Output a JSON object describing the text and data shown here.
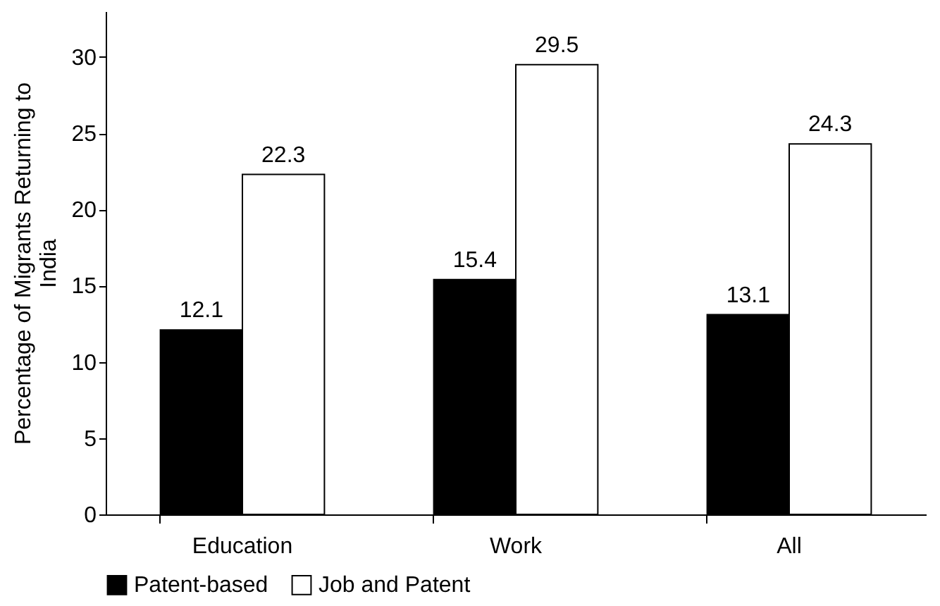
{
  "chart_data": {
    "type": "bar",
    "ylabel": "Percentage of Migrants Returning to India",
    "categories": [
      "Education",
      "Work",
      "All"
    ],
    "series": [
      {
        "name": "Patent-based",
        "color": "#000000",
        "values": [
          12.1,
          15.4,
          13.1
        ]
      },
      {
        "name": "Job and Patent",
        "color": "#ffffff",
        "values": [
          22.3,
          29.5,
          24.3
        ]
      }
    ],
    "ylim": [
      0,
      33
    ],
    "yticks": [
      0,
      5,
      10,
      15,
      20,
      25,
      30
    ],
    "data_labels": true,
    "legend": "bottom",
    "grid": false
  }
}
